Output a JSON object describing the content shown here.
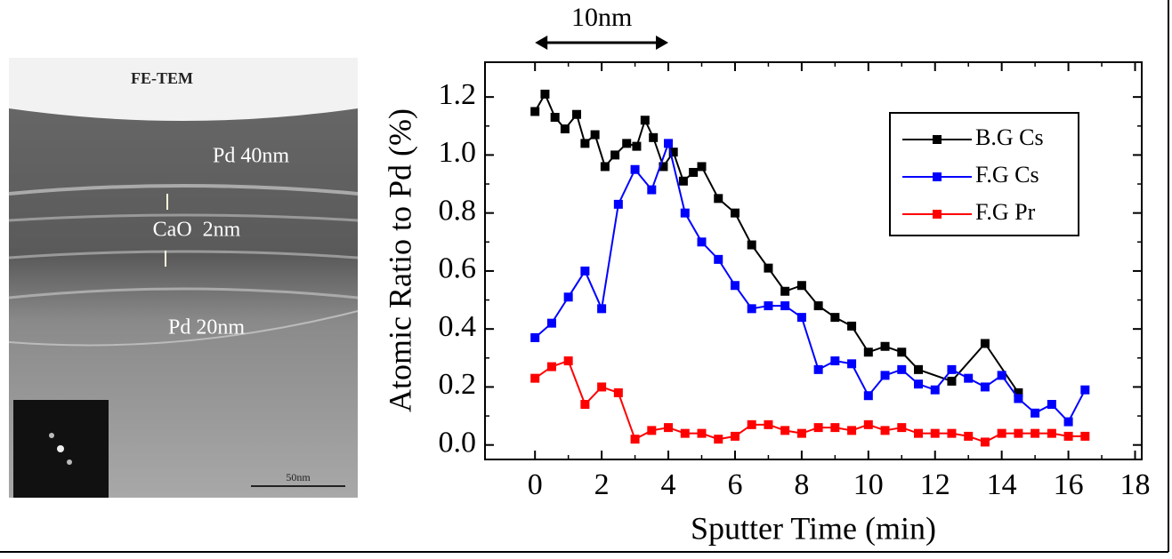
{
  "image": {
    "labels": [
      "FE-TEM",
      "Pd 40nm",
      "CaO  2nm",
      "Pd 20nm",
      "50nm"
    ]
  },
  "chart_data": {
    "type": "line",
    "x_label": "Sputter Time (min)",
    "y_label": "Atomic Ratio to Pd (%)",
    "annotation": {
      "text": "10nm",
      "x": [
        0,
        4
      ]
    },
    "xlim": [
      -1.5,
      18.2
    ],
    "ylim": [
      -0.05,
      1.32
    ],
    "xticks": [
      0,
      2,
      4,
      6,
      8,
      10,
      12,
      14,
      16,
      18
    ],
    "yticks": [
      {
        "value": 0,
        "label": "0.0"
      },
      0.2,
      0.4,
      0.6,
      0.8,
      {
        "value": 1,
        "label": "1.0"
      },
      1.2
    ],
    "legend": "upper right",
    "series": [
      {
        "name": "B.G Cs",
        "color": "#000000",
        "x": [
          0,
          0.3,
          0.6,
          0.9,
          1.25,
          1.5,
          1.8,
          2.1,
          2.4,
          2.75,
          3.05,
          3.3,
          3.55,
          3.85,
          4.15,
          4.45,
          4.75,
          5.0,
          5.5,
          6.0,
          6.5,
          7.0,
          7.5,
          8.0,
          8.5,
          9.0,
          9.5,
          10.0,
          10.5,
          11.0,
          11.5,
          12.5,
          13.5,
          14.5
        ],
        "values": [
          1.15,
          1.21,
          1.13,
          1.09,
          1.14,
          1.04,
          1.07,
          0.96,
          1.0,
          1.04,
          1.03,
          1.12,
          1.06,
          0.96,
          1.01,
          0.91,
          0.94,
          0.96,
          0.85,
          0.8,
          0.69,
          0.61,
          0.53,
          0.55,
          0.48,
          0.44,
          0.41,
          0.32,
          0.34,
          0.32,
          0.26,
          0.22,
          0.35,
          0.18
        ]
      },
      {
        "name": "F.G Cs",
        "color": "#0000ff",
        "x": [
          0,
          0.5,
          1,
          1.5,
          2,
          2.5,
          3,
          3.5,
          4,
          4.5,
          5,
          5.5,
          6,
          6.5,
          7,
          7.5,
          8,
          8.5,
          9,
          9.5,
          10,
          10.5,
          11,
          11.5,
          12,
          12.5,
          13,
          13.5,
          14,
          14.5,
          15,
          15.5,
          16,
          16.5
        ],
        "values": [
          0.37,
          0.42,
          0.51,
          0.6,
          0.47,
          0.83,
          0.95,
          0.88,
          1.04,
          0.8,
          0.7,
          0.64,
          0.55,
          0.47,
          0.48,
          0.48,
          0.44,
          0.26,
          0.29,
          0.28,
          0.17,
          0.24,
          0.26,
          0.21,
          0.19,
          0.26,
          0.23,
          0.2,
          0.24,
          0.16,
          0.11,
          0.14,
          0.08,
          0.19
        ]
      },
      {
        "name": "F.G Pr",
        "color": "#ff0000",
        "x": [
          0,
          0.5,
          1,
          1.5,
          2,
          2.5,
          3,
          3.5,
          4,
          4.5,
          5,
          5.5,
          6,
          6.5,
          7,
          7.5,
          8,
          8.5,
          9,
          9.5,
          10,
          10.5,
          11,
          11.5,
          12,
          12.5,
          13,
          13.5,
          14,
          14.5,
          15,
          15.5,
          16,
          16.5
        ],
        "values": [
          0.23,
          0.27,
          0.29,
          0.14,
          0.2,
          0.18,
          0.02,
          0.05,
          0.06,
          0.04,
          0.04,
          0.02,
          0.03,
          0.07,
          0.07,
          0.05,
          0.04,
          0.06,
          0.06,
          0.05,
          0.07,
          0.05,
          0.06,
          0.04,
          0.04,
          0.04,
          0.03,
          0.01,
          0.04,
          0.04,
          0.04,
          0.04,
          0.03,
          0.03
        ]
      }
    ]
  }
}
